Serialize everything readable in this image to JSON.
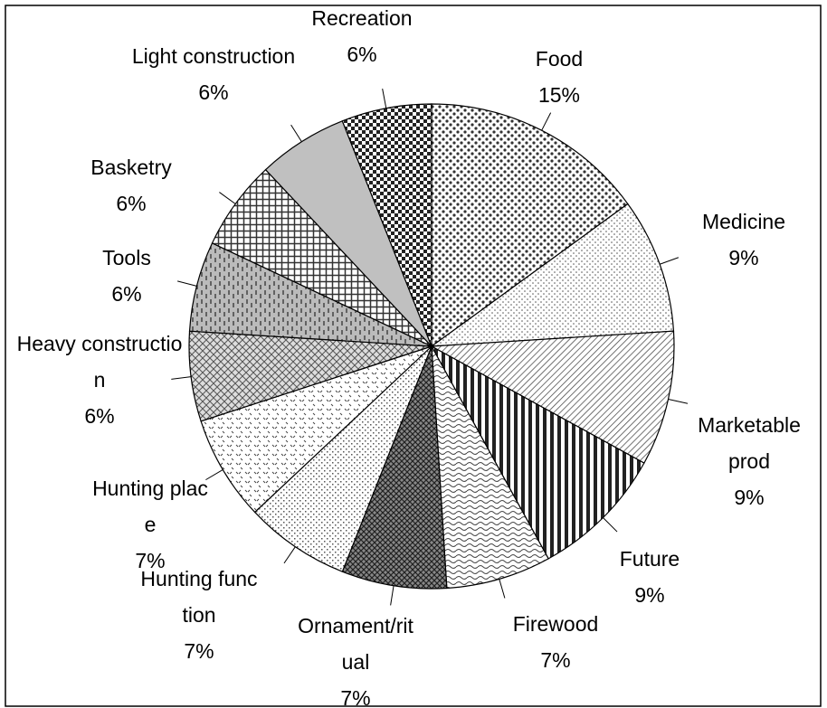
{
  "chart_data": {
    "type": "pie",
    "categories": [
      "Food",
      "Medicine",
      "Marketable prod",
      "Future",
      "Firewood",
      "Ornament/ritual",
      "Hunting function",
      "Hunting place",
      "Heavy construction",
      "Tools",
      "Basketry",
      "Light construction",
      "Recreation"
    ],
    "values": [
      15,
      9,
      9,
      9,
      7,
      7,
      7,
      7,
      6,
      6,
      6,
      6,
      6
    ],
    "value_labels": [
      "15%",
      "9%",
      "9%",
      "9%",
      "7%",
      "7%",
      "7%",
      "7%",
      "6%",
      "6%",
      "6%",
      "6%",
      "6%"
    ]
  }
}
